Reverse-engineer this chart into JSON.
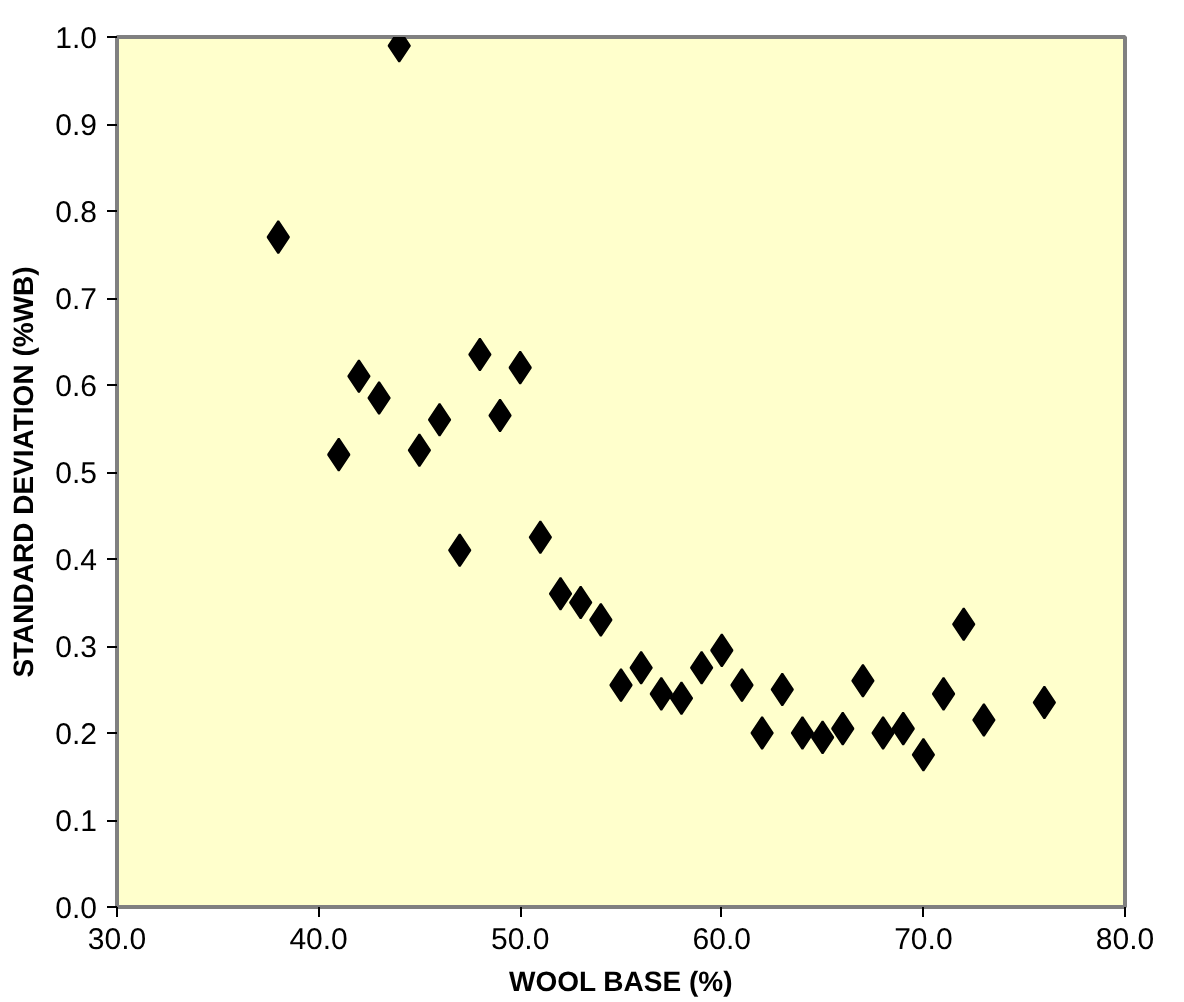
{
  "chart_data": {
    "type": "scatter",
    "xlabel": "WOOL BASE (%)",
    "ylabel": "STANDARD DEVIATION (%WB)",
    "x": [
      38,
      41,
      42,
      43,
      44,
      45,
      46,
      47,
      48,
      49,
      50,
      51,
      52,
      53,
      54,
      55,
      56,
      57,
      58,
      59,
      60,
      61,
      62,
      63,
      64,
      65,
      66,
      67,
      68,
      69,
      70,
      71,
      72,
      73,
      76
    ],
    "series": [
      {
        "color": "#000000",
        "values": [
          0.77,
          0.52,
          0.61,
          0.585,
          0.99,
          0.525,
          0.56,
          0.41,
          0.635,
          0.565,
          0.62,
          0.425,
          0.36,
          0.35,
          0.33,
          0.255,
          0.275,
          0.245,
          0.24,
          0.275,
          0.295,
          0.255,
          0.2,
          0.25,
          0.2,
          0.195,
          0.205,
          0.26,
          0.2,
          0.205,
          0.175,
          0.245,
          0.325,
          0.215,
          0.235
        ]
      }
    ],
    "xlim": [
      30,
      80
    ],
    "ylim": [
      0,
      1
    ],
    "xticks": [
      {
        "value": 30,
        "label": "30.0"
      },
      {
        "value": 40,
        "label": "40.0"
      },
      {
        "value": 50,
        "label": "50.0"
      },
      {
        "value": 60,
        "label": "60.0"
      },
      {
        "value": 70,
        "label": "70.0"
      },
      {
        "value": 80,
        "label": "80.0"
      }
    ],
    "yticks": [
      {
        "value": 0,
        "label": "0.0"
      },
      {
        "value": 0.1,
        "label": "0.1"
      },
      {
        "value": 0.2,
        "label": "0.2"
      },
      {
        "value": 0.3,
        "label": "0.3"
      },
      {
        "value": 0.4,
        "label": "0.4"
      },
      {
        "value": 0.5,
        "label": "0.5"
      },
      {
        "value": 0.6,
        "label": "0.6"
      },
      {
        "value": 0.7,
        "label": "0.7"
      },
      {
        "value": 0.8,
        "label": "0.8"
      },
      {
        "value": 0.9,
        "label": "0.9"
      },
      {
        "value": 1,
        "label": "1.0"
      }
    ],
    "grid": false,
    "marker": "diamond"
  }
}
